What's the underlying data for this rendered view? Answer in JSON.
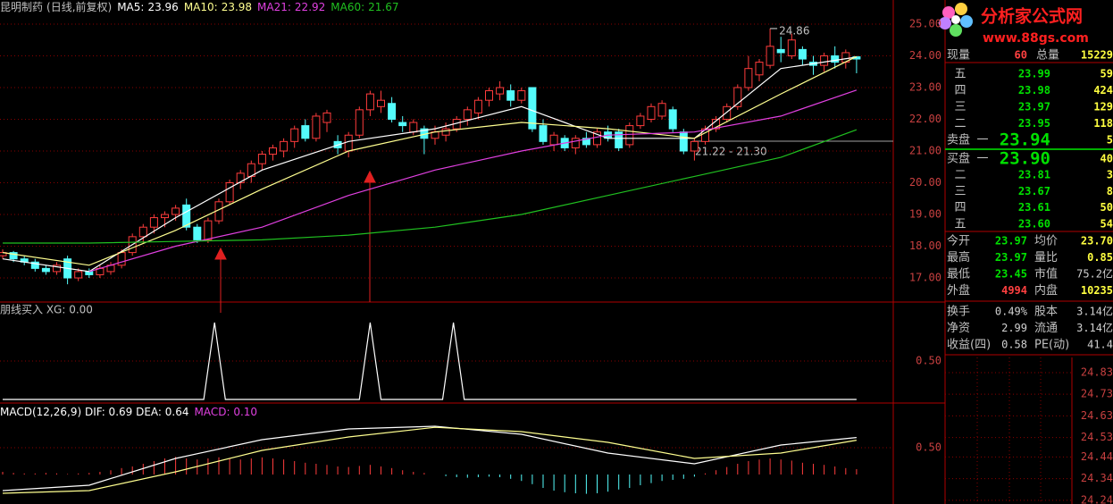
{
  "header": {
    "stock": "昆明制药",
    "period": "(日线,前复权)",
    "indicators": [
      {
        "label": "MA5:",
        "value": "23.96",
        "color": "#ffffff",
        "x": [
          0,
          8,
          16,
          24,
          32,
          40,
          48,
          56,
          64,
          72,
          79
        ],
        "values": [
          17.6,
          17.2,
          18.9,
          20.4,
          21.3,
          21.7,
          22.4,
          21.4,
          21.4,
          23.6,
          23.96
        ]
      },
      {
        "label": "MA10:",
        "value": "23.98",
        "color": "#ffff90",
        "x": [
          0,
          8,
          16,
          24,
          32,
          40,
          48,
          56,
          64,
          72,
          79
        ],
        "values": [
          17.8,
          17.4,
          18.5,
          19.8,
          21.0,
          21.6,
          21.9,
          21.7,
          21.4,
          22.8,
          23.98
        ]
      },
      {
        "label": "MA21:",
        "value": "22.92",
        "color": "#e040e0",
        "x": [
          0,
          8,
          16,
          24,
          32,
          40,
          48,
          56,
          64,
          72,
          79
        ],
        "values": [
          null,
          17.2,
          18.0,
          18.6,
          19.6,
          20.4,
          21.0,
          21.5,
          21.6,
          22.1,
          22.92
        ]
      },
      {
        "label": "MA60:",
        "value": "21.67",
        "color": "#20c020",
        "x": [
          0,
          8,
          16,
          24,
          32,
          40,
          48,
          56,
          64,
          72,
          79
        ],
        "values": [
          18.1,
          18.1,
          18.15,
          18.2,
          18.35,
          18.6,
          19.0,
          19.6,
          20.2,
          20.8,
          21.67
        ]
      }
    ]
  },
  "main": {
    "ylim": [
      16.24,
      25.76
    ],
    "yticks": [
      {
        "value": 25,
        "label": "25.00"
      },
      {
        "value": 24,
        "label": "24.00"
      },
      {
        "value": 23,
        "label": "23.00"
      },
      {
        "value": 22,
        "label": "22.00"
      },
      {
        "value": 21,
        "label": "21.00"
      },
      {
        "value": 20,
        "label": "20.00"
      },
      {
        "value": 19,
        "label": "19.00"
      },
      {
        "value": 18,
        "label": "18.00"
      },
      {
        "value": 17,
        "label": "17.00"
      }
    ],
    "up_color": "#ff3c3c",
    "down_color": "#54fcfc",
    "grid_color": "#8a0000",
    "high_label": "24.86",
    "range_label": "21.22 - 21.30",
    "candles": [
      [
        17.7,
        17.9,
        17.6,
        17.8
      ],
      [
        17.8,
        17.85,
        17.5,
        17.6
      ],
      [
        17.6,
        17.7,
        17.4,
        17.5
      ],
      [
        17.5,
        17.6,
        17.2,
        17.3
      ],
      [
        17.3,
        17.4,
        17.1,
        17.2
      ],
      [
        17.2,
        17.5,
        17.1,
        17.4
      ],
      [
        17.6,
        17.7,
        16.8,
        17.0
      ],
      [
        17.0,
        17.3,
        16.9,
        17.2
      ],
      [
        17.2,
        17.3,
        17.0,
        17.1
      ],
      [
        17.1,
        17.4,
        17.0,
        17.3
      ],
      [
        17.2,
        17.5,
        17.1,
        17.4
      ],
      [
        17.4,
        17.9,
        17.3,
        17.8
      ],
      [
        17.8,
        18.4,
        17.7,
        18.3
      ],
      [
        18.3,
        18.7,
        18.1,
        18.6
      ],
      [
        18.6,
        19.0,
        18.4,
        18.9
      ],
      [
        18.9,
        19.1,
        18.6,
        19.0
      ],
      [
        19.0,
        19.3,
        18.8,
        19.2
      ],
      [
        19.3,
        19.5,
        18.5,
        18.6
      ],
      [
        18.6,
        18.7,
        18.1,
        18.2
      ],
      [
        18.2,
        18.9,
        18.1,
        18.8
      ],
      [
        18.8,
        19.5,
        18.7,
        19.4
      ],
      [
        19.4,
        20.1,
        19.3,
        20.0
      ],
      [
        20.0,
        20.4,
        19.8,
        20.3
      ],
      [
        20.2,
        20.7,
        20.0,
        20.6
      ],
      [
        20.6,
        21.0,
        20.4,
        20.9
      ],
      [
        20.9,
        21.2,
        20.7,
        21.1
      ],
      [
        21.0,
        21.4,
        20.8,
        21.3
      ],
      [
        21.3,
        21.8,
        21.1,
        21.7
      ],
      [
        21.8,
        22.0,
        21.3,
        21.4
      ],
      [
        21.4,
        22.2,
        21.3,
        22.1
      ],
      [
        21.9,
        22.3,
        21.6,
        22.2
      ],
      [
        21.3,
        21.5,
        20.9,
        21.1
      ],
      [
        21.0,
        21.6,
        20.8,
        21.5
      ],
      [
        21.5,
        22.4,
        21.4,
        22.3
      ],
      [
        22.3,
        22.9,
        22.1,
        22.8
      ],
      [
        22.4,
        22.9,
        22.2,
        22.6
      ],
      [
        22.5,
        22.7,
        21.9,
        22.0
      ],
      [
        21.9,
        22.1,
        21.6,
        21.8
      ],
      [
        21.6,
        22.0,
        21.5,
        21.9
      ],
      [
        21.7,
        21.8,
        20.9,
        21.4
      ],
      [
        21.4,
        21.8,
        21.2,
        21.6
      ],
      [
        21.5,
        21.9,
        21.3,
        21.7
      ],
      [
        21.7,
        22.1,
        21.6,
        22.0
      ],
      [
        22.0,
        22.4,
        21.8,
        22.3
      ],
      [
        22.2,
        22.7,
        22.0,
        22.6
      ],
      [
        22.6,
        23.0,
        22.4,
        22.9
      ],
      [
        22.8,
        23.2,
        22.6,
        23.0
      ],
      [
        22.9,
        23.1,
        22.4,
        22.6
      ],
      [
        22.6,
        23.0,
        22.5,
        22.9
      ],
      [
        23.0,
        23.0,
        21.6,
        21.7
      ],
      [
        21.8,
        22.0,
        21.2,
        21.3
      ],
      [
        21.2,
        21.6,
        21.0,
        21.5
      ],
      [
        21.4,
        21.5,
        21.0,
        21.1
      ],
      [
        21.1,
        21.5,
        20.9,
        21.4
      ],
      [
        21.4,
        21.6,
        21.1,
        21.2
      ],
      [
        21.2,
        21.7,
        21.1,
        21.6
      ],
      [
        21.6,
        21.8,
        21.3,
        21.4
      ],
      [
        21.6,
        21.7,
        21.0,
        21.1
      ],
      [
        21.2,
        21.9,
        21.1,
        21.8
      ],
      [
        21.8,
        22.2,
        21.7,
        22.1
      ],
      [
        22.0,
        22.5,
        21.9,
        22.4
      ],
      [
        22.1,
        22.6,
        22.0,
        22.5
      ],
      [
        22.3,
        22.4,
        21.6,
        21.7
      ],
      [
        21.6,
        21.7,
        20.9,
        21.0
      ],
      [
        21.0,
        21.4,
        20.7,
        21.3
      ],
      [
        21.3,
        21.8,
        21.2,
        21.7
      ],
      [
        21.7,
        22.1,
        21.6,
        22.0
      ],
      [
        22.0,
        22.5,
        21.9,
        22.4
      ],
      [
        22.4,
        23.1,
        22.3,
        23.0
      ],
      [
        23.0,
        24.0,
        22.9,
        23.6
      ],
      [
        23.4,
        23.9,
        23.2,
        23.8
      ],
      [
        23.7,
        24.86,
        23.6,
        24.3
      ],
      [
        24.2,
        24.6,
        23.8,
        24.1
      ],
      [
        24.0,
        24.7,
        23.9,
        24.5
      ],
      [
        24.2,
        24.3,
        23.7,
        23.9
      ],
      [
        23.8,
        24.0,
        23.4,
        23.7
      ],
      [
        23.7,
        24.1,
        23.5,
        24.0
      ],
      [
        24.0,
        24.3,
        23.6,
        23.8
      ],
      [
        23.8,
        24.2,
        23.6,
        24.1
      ],
      [
        23.97,
        23.97,
        23.45,
        23.9
      ]
    ]
  },
  "signal": {
    "label": "朋线买入 XG: 0.00",
    "ylim": [
      -0.035,
      1.244
    ],
    "yticks": [
      {
        "value": 0.5,
        "label": "0.50"
      }
    ],
    "x": [
      0,
      18.6,
      19.6,
      20.6,
      33,
      34,
      35,
      40.7,
      41.7,
      42.7,
      79
    ],
    "values": [
      0,
      0,
      1,
      0,
      0,
      1,
      0,
      0,
      1,
      0,
      0
    ]
  },
  "macd": {
    "label_parts": [
      {
        "text": "MACD(12,26,9) DIF: 0.69 DEA: 0.64",
        "color": "#ffffff"
      },
      {
        "text": "MACD: 0.10",
        "color": "#e040e0"
      }
    ],
    "ylim": [
      -0.55,
      1.317
    ],
    "yticks": [
      {
        "value": 0.5,
        "label": "0.50"
      }
    ],
    "bars": [
      0.05,
      0.03,
      0.02,
      0.02,
      0.03,
      0.02,
      0.01,
      0.02,
      0.03,
      0.05,
      0.08,
      0.12,
      0.15,
      0.2,
      0.25,
      0.3,
      0.33,
      0.3,
      0.28,
      0.3,
      0.32,
      0.3,
      0.28,
      0.3,
      0.32,
      0.3,
      0.28,
      0.25,
      0.22,
      0.2,
      0.18,
      0.15,
      0.14,
      0.16,
      0.18,
      0.15,
      0.12,
      0.08,
      0.05,
      0.03,
      0.0,
      -0.03,
      -0.05,
      -0.06,
      -0.05,
      -0.04,
      -0.05,
      -0.08,
      -0.12,
      -0.18,
      -0.25,
      -0.3,
      -0.33,
      -0.35,
      -0.36,
      -0.35,
      -0.32,
      -0.28,
      -0.25,
      -0.2,
      -0.16,
      -0.12,
      -0.1,
      -0.08,
      -0.04,
      0.02,
      0.08,
      0.14,
      0.2,
      0.25,
      0.28,
      0.3,
      0.28,
      0.26,
      0.22,
      0.2,
      0.18,
      0.15,
      0.12,
      0.1
    ],
    "lines": [
      {
        "color": "#ffffff",
        "x": [
          0,
          8,
          16,
          24,
          32,
          40,
          48,
          56,
          64,
          72,
          79
        ],
        "values": [
          -0.3,
          -0.2,
          0.3,
          0.65,
          0.85,
          0.9,
          0.75,
          0.4,
          0.2,
          0.55,
          0.69
        ]
      },
      {
        "color": "#ffff90",
        "x": [
          0,
          8,
          16,
          24,
          32,
          40,
          48,
          56,
          64,
          72,
          79
        ],
        "values": [
          -0.35,
          -0.3,
          0.05,
          0.45,
          0.7,
          0.88,
          0.8,
          0.6,
          0.3,
          0.4,
          0.64
        ]
      }
    ]
  },
  "logo": {
    "title": "分析家公式网",
    "url": "www.88gs.com"
  },
  "quote": {
    "top": [
      "现量",
      "60",
      "总量",
      "15229"
    ],
    "ask_label": "卖盘",
    "bid_label": "买盘",
    "asks": [
      [
        "五",
        "23.99",
        "59"
      ],
      [
        "四",
        "23.98",
        "424"
      ],
      [
        "三",
        "23.97",
        "129"
      ],
      [
        "二",
        "23.95",
        "118"
      ],
      [
        "一",
        "23.94",
        "5"
      ]
    ],
    "bids": [
      [
        "一",
        "23.90",
        "40"
      ],
      [
        "二",
        "23.81",
        "3"
      ],
      [
        "三",
        "23.67",
        "8"
      ],
      [
        "四",
        "23.61",
        "50"
      ],
      [
        "五",
        "23.60",
        "54"
      ]
    ],
    "stats": [
      [
        "今开",
        "23.97",
        "均价",
        "23.70"
      ],
      [
        "最高",
        "23.97",
        "量比",
        "0.85"
      ],
      [
        "最低",
        "23.45",
        "市值",
        "75.2亿"
      ],
      [
        "外盘",
        "4994",
        "内盘",
        "10235"
      ]
    ],
    "stats2": [
      [
        "换手",
        "0.49%",
        "股本",
        "3.14亿"
      ],
      [
        "净资",
        "2.99",
        "流通",
        "3.14亿"
      ],
      [
        "收益(四)",
        "0.58",
        "PE(动)",
        "41.4"
      ]
    ]
  },
  "minute": {
    "ylim": [
      24.223,
      24.9
    ],
    "yticks": [
      24.83,
      24.73,
      24.63,
      24.53,
      24.44,
      24.34,
      24.24
    ]
  }
}
